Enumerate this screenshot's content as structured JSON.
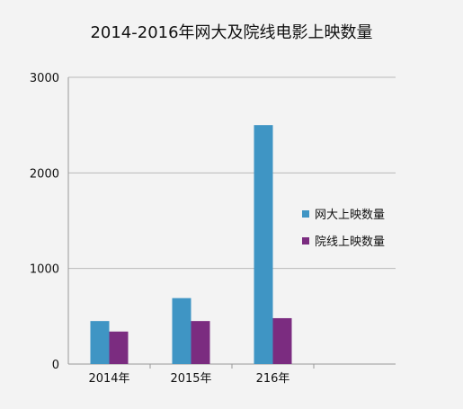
{
  "chart_data": {
    "type": "bar",
    "title": "2014-2016年网大及院线电影上映数量",
    "categories": [
      "2014年",
      "2015年",
      "216年"
    ],
    "series": [
      {
        "name": "网大上映数量",
        "values": [
          450,
          690,
          2500
        ],
        "color": "#3f95c4"
      },
      {
        "name": "院线上映数量",
        "values": [
          340,
          450,
          480
        ],
        "color": "#7b2c80"
      }
    ],
    "y_ticks": [
      "0",
      "1000",
      "2000",
      "3000"
    ],
    "ylim": [
      0,
      3000
    ],
    "grid": true,
    "legend_position": "right"
  }
}
